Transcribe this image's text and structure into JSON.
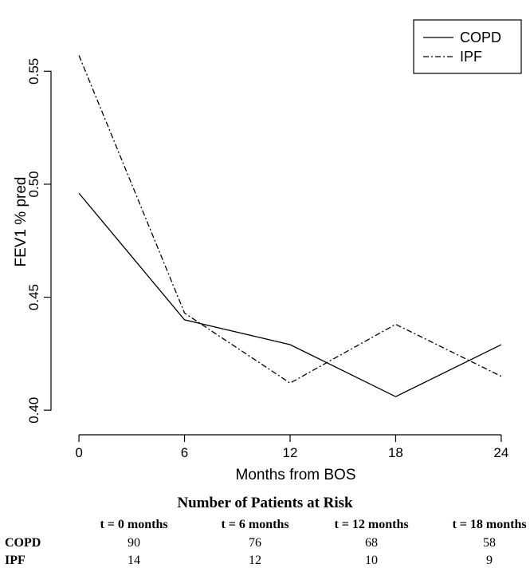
{
  "chart_data": {
    "type": "line",
    "title": "",
    "xlabel": "Months from BOS",
    "ylabel": "FEV1 % pred",
    "x": [
      0,
      6,
      12,
      18,
      24
    ],
    "xlim": [
      -1,
      25.5
    ],
    "ylim": [
      0.393,
      0.578
    ],
    "x_ticks": [
      "0",
      "6",
      "12",
      "18",
      "24"
    ],
    "y_ticks": [
      "0.40",
      "0.45",
      "0.50",
      "0.55"
    ],
    "y_tick_values": [
      0.4,
      0.45,
      0.5,
      0.55
    ],
    "grid": false,
    "legend_position": "top-right",
    "series": [
      {
        "name": "COPD",
        "style": "solid",
        "values": [
          0.496,
          0.44,
          0.429,
          0.406,
          0.429
        ]
      },
      {
        "name": "IPF",
        "style": "dashdot",
        "values": [
          0.557,
          0.443,
          0.412,
          0.438,
          0.415
        ]
      }
    ]
  },
  "risk_table": {
    "title": "Number of Patients at Risk",
    "headers": [
      "t = 0 months",
      "t = 6 months",
      "t = 12 months",
      "t = 18 months"
    ],
    "rows": [
      {
        "label": "COPD",
        "values": [
          "90",
          "76",
          "68",
          "58"
        ]
      },
      {
        "label": "IPF",
        "values": [
          "14",
          "12",
          "10",
          "9"
        ]
      }
    ]
  }
}
